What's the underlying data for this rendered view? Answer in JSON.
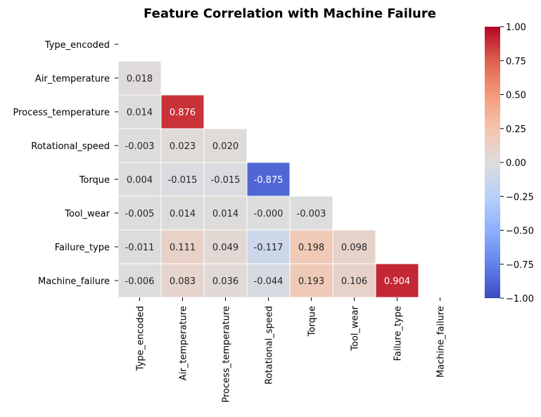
{
  "chart_data": {
    "type": "heatmap",
    "title": "Feature Correlation with Machine Failure",
    "xlabel": "",
    "ylabel": "",
    "mask": "upper-triangle-including-diagonal",
    "colormap": "coolwarm",
    "vmin": -1.0,
    "vmax": 1.0,
    "labels": [
      "Type_encoded",
      "Air_temperature",
      "Process_temperature",
      "Rotational_speed",
      "Torque",
      "Tool_wear",
      "Failure_type",
      "Machine_failure"
    ],
    "cells": [
      {
        "row": 1,
        "col": 0,
        "value": 0.018,
        "label": "0.018"
      },
      {
        "row": 2,
        "col": 0,
        "value": 0.014,
        "label": "0.014"
      },
      {
        "row": 2,
        "col": 1,
        "value": 0.876,
        "label": "0.876"
      },
      {
        "row": 3,
        "col": 0,
        "value": -0.003,
        "label": "-0.003"
      },
      {
        "row": 3,
        "col": 1,
        "value": 0.023,
        "label": "0.023"
      },
      {
        "row": 3,
        "col": 2,
        "value": 0.02,
        "label": "0.020"
      },
      {
        "row": 4,
        "col": 0,
        "value": 0.004,
        "label": "0.004"
      },
      {
        "row": 4,
        "col": 1,
        "value": -0.015,
        "label": "-0.015"
      },
      {
        "row": 4,
        "col": 2,
        "value": -0.015,
        "label": "-0.015"
      },
      {
        "row": 4,
        "col": 3,
        "value": -0.875,
        "label": "-0.875"
      },
      {
        "row": 5,
        "col": 0,
        "value": -0.005,
        "label": "-0.005"
      },
      {
        "row": 5,
        "col": 1,
        "value": 0.014,
        "label": "0.014"
      },
      {
        "row": 5,
        "col": 2,
        "value": 0.014,
        "label": "0.014"
      },
      {
        "row": 5,
        "col": 3,
        "value": -0.0,
        "label": "-0.000"
      },
      {
        "row": 5,
        "col": 4,
        "value": -0.003,
        "label": "-0.003"
      },
      {
        "row": 6,
        "col": 0,
        "value": -0.011,
        "label": "-0.011"
      },
      {
        "row": 6,
        "col": 1,
        "value": 0.111,
        "label": "0.111"
      },
      {
        "row": 6,
        "col": 2,
        "value": 0.049,
        "label": "0.049"
      },
      {
        "row": 6,
        "col": 3,
        "value": -0.117,
        "label": "-0.117"
      },
      {
        "row": 6,
        "col": 4,
        "value": 0.198,
        "label": "0.198"
      },
      {
        "row": 6,
        "col": 5,
        "value": 0.098,
        "label": "0.098"
      },
      {
        "row": 7,
        "col": 0,
        "value": -0.006,
        "label": "-0.006"
      },
      {
        "row": 7,
        "col": 1,
        "value": 0.083,
        "label": "0.083"
      },
      {
        "row": 7,
        "col": 2,
        "value": 0.036,
        "label": "0.036"
      },
      {
        "row": 7,
        "col": 3,
        "value": -0.044,
        "label": "-0.044"
      },
      {
        "row": 7,
        "col": 4,
        "value": 0.193,
        "label": "0.193"
      },
      {
        "row": 7,
        "col": 5,
        "value": 0.106,
        "label": "0.106"
      },
      {
        "row": 7,
        "col": 6,
        "value": 0.904,
        "label": "0.904"
      }
    ],
    "colorbar": {
      "ticks": [
        1.0,
        0.75,
        0.5,
        0.25,
        0.0,
        -0.25,
        -0.5,
        -0.75,
        -1.0
      ],
      "tick_labels": [
        "1.00",
        "0.75",
        "0.50",
        "0.25",
        "0.00",
        "−0.25",
        "−0.50",
        "−0.75",
        "−1.00"
      ]
    }
  }
}
